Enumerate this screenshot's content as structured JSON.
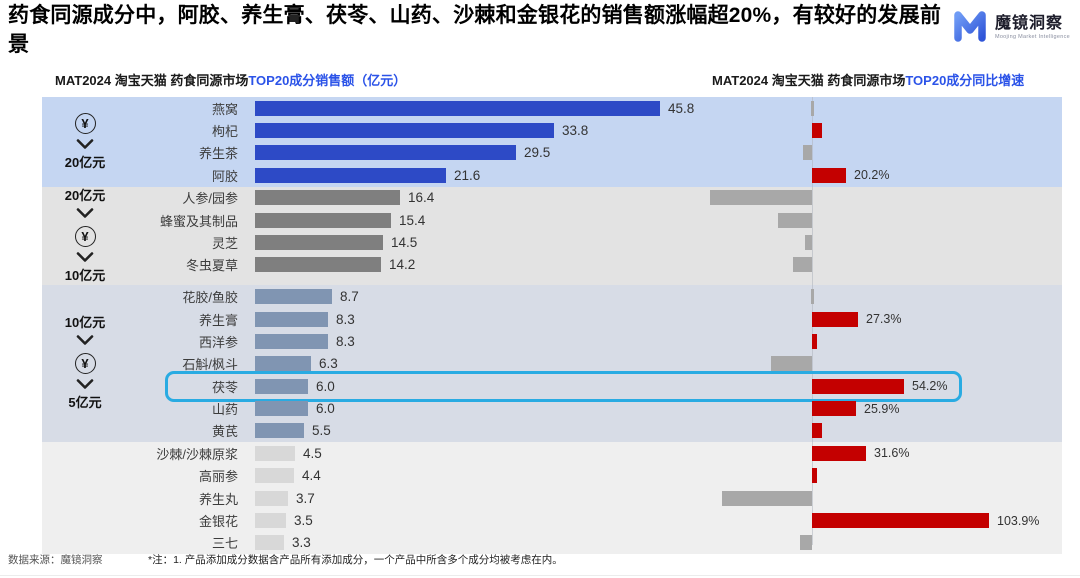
{
  "title": "药食同源成分中，阿胶、养生膏、茯苓、山药、沙棘和金银花的销售额涨幅超20%，有较好的发展前景",
  "logo": {
    "brand": "魔镜洞察",
    "tagline": "Moojing Market Intelligence"
  },
  "left_chart_title": {
    "prefix": "MAT2024 淘宝天猫 药食同源市场",
    "highlight": "TOP20成分销售额（亿元）"
  },
  "right_chart_title": {
    "prefix": "MAT2024 淘宝天猫 药食同源市场",
    "highlight": "TOP20成分同比增速"
  },
  "footer": {
    "source": "数据来源：魔镜洞察",
    "note": "*注：1. 产品添加成分数据含产品所有添加成分，一个产品中所含多个成分均被考虑在内。"
  },
  "colors": {
    "title_highlight_blue": "#2b53e8",
    "growth_positive_red": "#c40000",
    "growth_negative_gray": "#a8a8a8",
    "highlight_box_cyan": "#29abe2",
    "band_colors": [
      "#c5d6f2",
      "#e3e3e3",
      "#d7dce6",
      "#efefef"
    ],
    "sales_bar_colors": [
      "#2d4ac6",
      "#7f7f7f",
      "#8095b2",
      "#d8d8d8"
    ]
  },
  "chart_data": {
    "type": "bar",
    "orientation": "horizontal",
    "charts": [
      {
        "title": "MAT2024 淘宝天猫 药食同源市场TOP20成分销售额（亿元）",
        "unit": "亿元",
        "xlim": [
          0,
          48
        ],
        "grid": false
      },
      {
        "title": "MAT2024 淘宝天猫 药食同源市场TOP20成分同比增速",
        "unit": "%",
        "xlim": [
          -70,
          110
        ],
        "grid": false,
        "zero_axis": true
      }
    ],
    "groups": [
      {
        "range_items": [
          "¥",
          "∨",
          "20亿元"
        ],
        "band_color": "#c5d6f2",
        "bar_color": "#2d4ac6",
        "rows": [
          {
            "category": "燕窝",
            "sales": 45.8,
            "growth_pct": 0,
            "growth_label": "",
            "growth_estimated": true
          },
          {
            "category": "枸杞",
            "sales": 33.8,
            "growth_pct": 6,
            "growth_label": "",
            "growth_estimated": true
          },
          {
            "category": "养生茶",
            "sales": 29.5,
            "growth_pct": -5,
            "growth_label": "",
            "growth_estimated": true
          },
          {
            "category": "阿胶",
            "sales": 21.6,
            "growth_pct": 20.2,
            "growth_label": "20.2%"
          }
        ]
      },
      {
        "range_items": [
          "20亿元",
          "∨",
          "¥",
          "∨",
          "10亿元"
        ],
        "band_color": "#e3e3e3",
        "bar_color": "#7f7f7f",
        "rows": [
          {
            "category": "人参/园参",
            "sales": 16.4,
            "growth_pct": -60,
            "growth_label": "",
            "growth_estimated": true
          },
          {
            "category": "蜂蜜及其制品",
            "sales": 15.4,
            "growth_pct": -20,
            "growth_label": "",
            "growth_estimated": true
          },
          {
            "category": "灵芝",
            "sales": 14.5,
            "growth_pct": -4,
            "growth_label": "",
            "growth_estimated": true
          },
          {
            "category": "冬虫夏草",
            "sales": 14.2,
            "growth_pct": -11,
            "growth_label": "",
            "growth_estimated": true
          }
        ]
      },
      {
        "range_items": [
          "10亿元",
          "∨",
          "¥",
          "∨",
          "5亿元"
        ],
        "band_color": "#d7dce6",
        "bar_color": "#8095b2",
        "rows": [
          {
            "category": "花胶/鱼胶",
            "sales": 8.7,
            "growth_pct": 0,
            "growth_label": "",
            "growth_estimated": true
          },
          {
            "category": "养生膏",
            "sales": 8.3,
            "growth_pct": 27.3,
            "growth_label": "27.3%"
          },
          {
            "category": "西洋参",
            "sales": 8.3,
            "growth_pct": 3,
            "growth_label": "",
            "growth_estimated": true
          },
          {
            "category": "石斛/枫斗",
            "sales": 6.3,
            "growth_pct": -24,
            "growth_label": "",
            "growth_estimated": true
          },
          {
            "category": "茯苓",
            "sales": 6.0,
            "growth_pct": 54.2,
            "growth_label": "54.2%",
            "highlighted": true
          },
          {
            "category": "山药",
            "sales": 6.0,
            "growth_pct": 25.9,
            "growth_label": "25.9%"
          },
          {
            "category": "黄芪",
            "sales": 5.5,
            "growth_pct": 6,
            "growth_label": "",
            "growth_estimated": true
          }
        ]
      },
      {
        "range_items": [],
        "band_color": "#efefef",
        "bar_color": "#d8d8d8",
        "rows": [
          {
            "category": "沙棘/沙棘原浆",
            "sales": 4.5,
            "growth_pct": 31.6,
            "growth_label": "31.6%"
          },
          {
            "category": "高丽参",
            "sales": 4.4,
            "growth_pct": 3,
            "growth_label": "",
            "growth_estimated": true
          },
          {
            "category": "养生丸",
            "sales": 3.7,
            "growth_pct": -53,
            "growth_label": "",
            "growth_estimated": true
          },
          {
            "category": "金银花",
            "sales": 3.5,
            "growth_pct": 103.9,
            "growth_label": "103.9%"
          },
          {
            "category": "三七",
            "sales": 3.3,
            "growth_pct": -7,
            "growth_label": "",
            "growth_estimated": true
          }
        ]
      }
    ]
  }
}
